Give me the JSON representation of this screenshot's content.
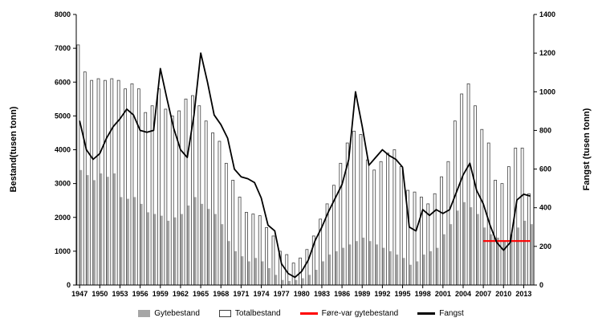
{
  "chart_data": {
    "type": "bar",
    "subtype": "bar-line-combo",
    "title": "",
    "grid": false,
    "background_color": "#ffffff",
    "x_years": [
      1947,
      1948,
      1949,
      1950,
      1951,
      1952,
      1953,
      1954,
      1955,
      1956,
      1957,
      1958,
      1959,
      1960,
      1961,
      1962,
      1963,
      1964,
      1965,
      1966,
      1967,
      1968,
      1969,
      1970,
      1971,
      1972,
      1973,
      1974,
      1975,
      1976,
      1977,
      1978,
      1979,
      1980,
      1981,
      1982,
      1983,
      1984,
      1985,
      1986,
      1987,
      1988,
      1989,
      1990,
      1991,
      1992,
      1993,
      1994,
      1995,
      1996,
      1997,
      1998,
      1999,
      2000,
      2001,
      2002,
      2003,
      2004,
      2005,
      2006,
      2007,
      2008,
      2009,
      2010,
      2011,
      2012,
      2013,
      2014
    ],
    "series": [
      {
        "name": "Gytebestand",
        "type": "bar",
        "slot": 1,
        "axis": "left",
        "color": "#a6a6a6",
        "values": [
          3400,
          3250,
          3100,
          3300,
          3200,
          3300,
          2600,
          2550,
          2600,
          2400,
          2150,
          2100,
          2050,
          1900,
          2000,
          2100,
          2350,
          2600,
          2400,
          2250,
          2100,
          1800,
          1300,
          1000,
          850,
          700,
          800,
          700,
          500,
          300,
          150,
          120,
          150,
          200,
          300,
          450,
          700,
          900,
          1000,
          1100,
          1200,
          1300,
          1400,
          1300,
          1200,
          1100,
          1000,
          900,
          800,
          600,
          700,
          900,
          1000,
          1100,
          1500,
          1800,
          2200,
          2450,
          2300,
          2100,
          1700,
          1500,
          1400,
          1300,
          1500,
          1700,
          1900,
          1800
        ]
      },
      {
        "name": "Totalbestand",
        "type": "bar",
        "slot": 0,
        "axis": "left",
        "color": "#ffffff",
        "border_color": "#404040",
        "values": [
          7100,
          6300,
          6050,
          6100,
          6050,
          6100,
          6050,
          5800,
          5950,
          5800,
          5100,
          5300,
          5800,
          5200,
          5000,
          5150,
          5500,
          5600,
          5300,
          4850,
          4500,
          4250,
          3600,
          3100,
          2600,
          2150,
          2100,
          2050,
          1700,
          1450,
          1000,
          900,
          650,
          800,
          1050,
          1450,
          1950,
          2400,
          2950,
          3600,
          4200,
          4550,
          4450,
          3700,
          3400,
          3650,
          3900,
          4000,
          3500,
          2800,
          2750,
          2600,
          2400,
          2700,
          3200,
          3650,
          4850,
          5650,
          5950,
          5300,
          4600,
          4200,
          3100,
          3000,
          3500,
          4050,
          4050,
          2700
        ]
      },
      {
        "name": "Føre-var gytebestand",
        "type": "line",
        "axis": "left",
        "color": "#ff0000",
        "width": 2.2,
        "values": [
          null,
          null,
          null,
          null,
          null,
          null,
          null,
          null,
          null,
          null,
          null,
          null,
          null,
          null,
          null,
          null,
          null,
          null,
          null,
          null,
          null,
          null,
          null,
          null,
          null,
          null,
          null,
          null,
          null,
          null,
          null,
          null,
          null,
          null,
          null,
          null,
          null,
          null,
          null,
          null,
          null,
          null,
          null,
          null,
          null,
          null,
          null,
          null,
          null,
          null,
          null,
          null,
          null,
          null,
          null,
          null,
          null,
          null,
          null,
          null,
          1300,
          1300,
          1300,
          1300,
          1300,
          1300,
          1300,
          1300
        ]
      },
      {
        "name": "Fangst",
        "type": "line",
        "axis": "right",
        "color": "#000000",
        "width": 1.8,
        "values": [
          850,
          700,
          650,
          680,
          760,
          820,
          860,
          910,
          880,
          800,
          790,
          800,
          1120,
          960,
          810,
          700,
          660,
          880,
          1200,
          1050,
          880,
          830,
          760,
          600,
          560,
          550,
          530,
          450,
          310,
          280,
          110,
          60,
          40,
          70,
          130,
          230,
          300,
          380,
          450,
          520,
          650,
          1000,
          820,
          620,
          660,
          700,
          670,
          650,
          610,
          300,
          280,
          390,
          360,
          390,
          370,
          390,
          480,
          570,
          630,
          490,
          420,
          310,
          220,
          180,
          220,
          440,
          470,
          460
        ]
      }
    ],
    "left_axis": {
      "label": "Bestand(tusen tonn)",
      "min": 0,
      "max": 8000,
      "step": 1000
    },
    "right_axis": {
      "label": "Fangst (tusen tonn)",
      "min": 0,
      "max": 1400,
      "step": 200
    },
    "x_axis": {
      "tick_years": [
        1947,
        1950,
        1953,
        1956,
        1959,
        1962,
        1965,
        1968,
        1971,
        1974,
        1977,
        1980,
        1983,
        1986,
        1989,
        1992,
        1995,
        1998,
        2001,
        2004,
        2007,
        2010,
        2013
      ]
    },
    "legend_position": "bottom"
  }
}
